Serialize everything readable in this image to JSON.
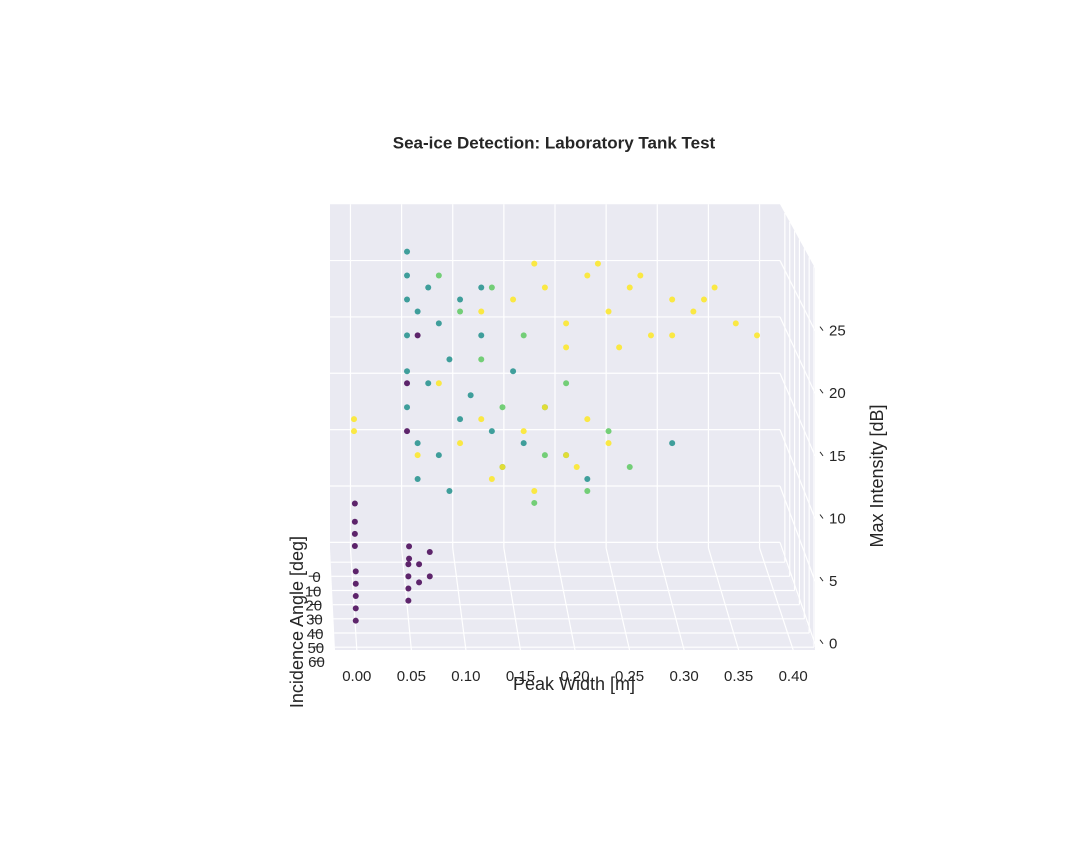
{
  "chart_data": {
    "type": "scatter3d",
    "title": "Sea-ice Detection: Laboratory Tank Test",
    "x_label": "Peak Width [m]",
    "y_label": "Incidence Angle [deg]",
    "z_label": "Max Intensity [dB]",
    "xlim": [
      -0.02,
      0.42
    ],
    "ylim": [
      62,
      -10
    ],
    "zlim": [
      -0.5,
      30
    ],
    "xticks": [
      {
        "value": 0,
        "label": "0.00"
      },
      0.05,
      {
        "value": 0.1,
        "label": "0.10"
      },
      0.15,
      {
        "value": 0.2,
        "label": "0.20"
      },
      0.25,
      {
        "value": 0.3,
        "label": "0.30"
      },
      0.35,
      {
        "value": 0.4,
        "label": "0.40"
      }
    ],
    "yticks": [
      0,
      10,
      20,
      30,
      40,
      50,
      60
    ],
    "zticks": [
      0,
      5,
      10,
      15,
      20,
      25
    ],
    "grid": true,
    "series": [
      {
        "color": "#440154",
        "x": [
          0,
          0,
          0,
          0,
          0,
          0,
          0,
          0,
          0,
          0.05,
          0.05,
          0.05,
          0.05,
          0.05,
          0.05,
          0.06,
          0.06,
          0.07,
          0.07,
          0.05,
          0.05,
          0.06
        ],
        "y": [
          50,
          50,
          50,
          50,
          50,
          40,
          40,
          40,
          40,
          40,
          40,
          40,
          40,
          45,
          45,
          40,
          40,
          40,
          40,
          30,
          30,
          30
        ],
        "z": [
          0.5,
          1.5,
          2.5,
          3.5,
          4.5,
          5.5,
          6.5,
          7.5,
          9,
          1,
          2,
          3,
          4,
          5,
          6,
          2.5,
          4,
          3,
          5,
          14,
          18,
          22
        ]
      },
      {
        "color": "#21918c",
        "x": [
          0.05,
          0.05,
          0.05,
          0.05,
          0.05,
          0.05,
          0.06,
          0.06,
          0.07,
          0.07,
          0.08,
          0.08,
          0.09,
          0.1,
          0.1,
          0.11,
          0.12,
          0.13,
          0.14,
          0.15,
          0.16,
          0.18,
          0.2,
          0.22,
          0.3,
          0.06,
          0.09,
          0.12
        ],
        "y": [
          30,
          30,
          30,
          30,
          30,
          30,
          30,
          30,
          30,
          30,
          30,
          30,
          30,
          30,
          30,
          30,
          30,
          30,
          30,
          30,
          30,
          30,
          30,
          30,
          30,
          30,
          30,
          30
        ],
        "z": [
          29,
          27,
          25,
          22,
          19,
          16,
          13,
          10,
          26,
          18,
          23,
          12,
          20,
          15,
          25,
          17,
          22,
          14,
          11,
          19,
          13,
          16,
          12,
          10,
          13,
          24,
          9,
          26
        ]
      },
      {
        "color": "#5ec962",
        "x": [
          0.08,
          0.1,
          0.12,
          0.14,
          0.16,
          0.18,
          0.2,
          0.22,
          0.24,
          0.26,
          0.13,
          0.17
        ],
        "y": [
          30,
          30,
          30,
          30,
          30,
          30,
          30,
          30,
          30,
          30,
          30,
          30
        ],
        "z": [
          27,
          24,
          20,
          16,
          22,
          12,
          18,
          9,
          14,
          11,
          26,
          8
        ]
      },
      {
        "color": "#fde725",
        "x": [
          0.12,
          0.15,
          0.18,
          0.2,
          0.22,
          0.24,
          0.26,
          0.28,
          0.3,
          0.32,
          0.34,
          0.36,
          0.38,
          0.2,
          0.25,
          0.3,
          0.17,
          0.23,
          0.27,
          0.33,
          0.1,
          0.12,
          0.14,
          0.16,
          0.18,
          0.2,
          0.22,
          0.24,
          0.13,
          0.17,
          0.21,
          0.08,
          0.06,
          0,
          0
        ],
        "y": [
          30,
          30,
          30,
          30,
          30,
          30,
          30,
          30,
          30,
          30,
          30,
          30,
          30,
          30,
          30,
          30,
          30,
          30,
          30,
          30,
          30,
          30,
          30,
          30,
          30,
          30,
          30,
          30,
          30,
          30,
          30,
          30,
          30,
          30,
          30
        ],
        "z": [
          24,
          25,
          26,
          23,
          27,
          24,
          26,
          22,
          25,
          24,
          26,
          23,
          22,
          21,
          21,
          22,
          28,
          28,
          27,
          25,
          13,
          15,
          11,
          14,
          16,
          12,
          15,
          13,
          10,
          9,
          11,
          18,
          12,
          15,
          14
        ]
      }
    ]
  }
}
